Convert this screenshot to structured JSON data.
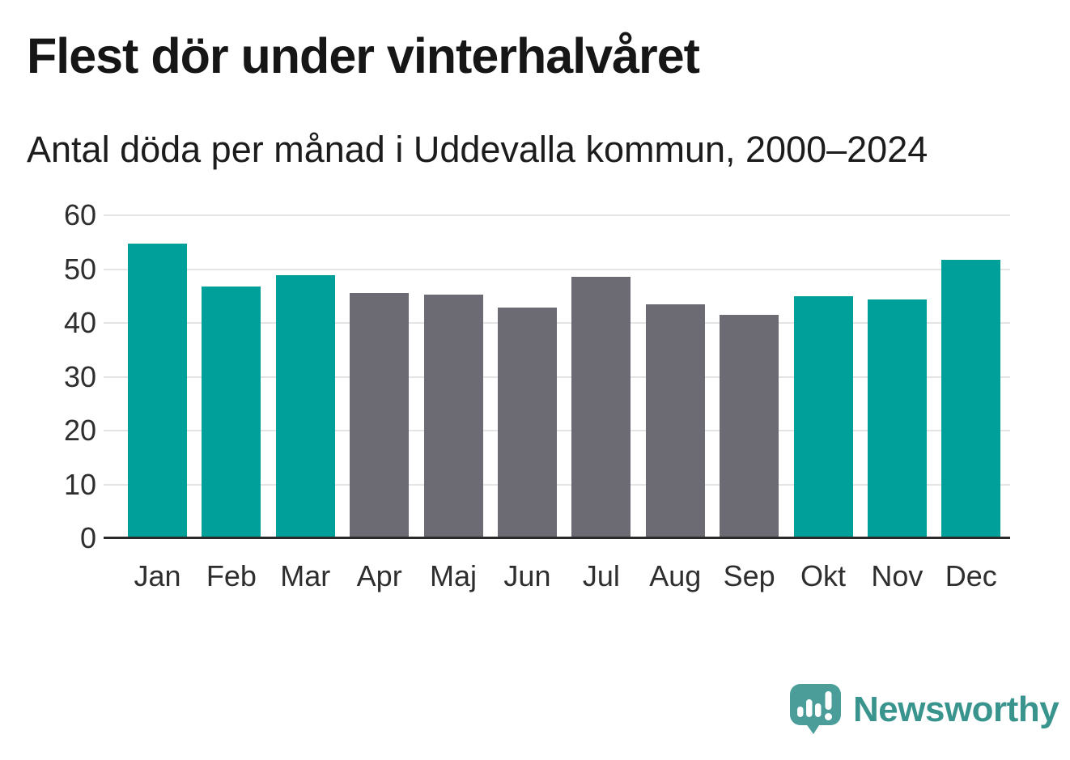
{
  "header": {
    "title": "Flest dör under vinterhalvåret",
    "subtitle": "Antal döda per månad i Uddevalla kommun, 2000–2024"
  },
  "chart_data": {
    "type": "bar",
    "categories": [
      "Jan",
      "Feb",
      "Mar",
      "Apr",
      "Maj",
      "Jun",
      "Jul",
      "Aug",
      "Sep",
      "Okt",
      "Nov",
      "Dec"
    ],
    "values": [
      54.8,
      46.8,
      48.9,
      45.5,
      45.3,
      42.9,
      48.5,
      43.5,
      41.5,
      44.9,
      44.3,
      51.7
    ],
    "highlight_winter_months": [
      true,
      true,
      true,
      false,
      false,
      false,
      false,
      false,
      false,
      true,
      true,
      true
    ],
    "title": "Flest dör under vinterhalvåret",
    "subtitle": "Antal döda per månad i Uddevalla kommun, 2000–2024",
    "xlabel": "",
    "ylabel": "",
    "ylim": [
      0,
      60
    ],
    "yticks": [
      0,
      10,
      20,
      30,
      40,
      50,
      60
    ],
    "grid": true,
    "legend_position": "none",
    "bar_color_highlight": "#00a09a",
    "bar_color_default": "#6c6b74"
  },
  "colors": {
    "teal": "#00a09a",
    "gray": "#6c6b74",
    "gridline": "#e4e4e4",
    "axis": "#2b2b2b",
    "title_text": "#161616",
    "axis_label_text": "#2e2e2e",
    "logo_icon": "#4a9d99",
    "logo_text": "#3a948e"
  },
  "footer": {
    "brand": "Newsworthy"
  }
}
